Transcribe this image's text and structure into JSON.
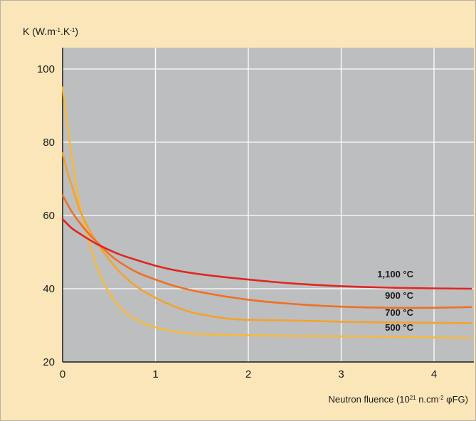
{
  "chart_data": {
    "type": "line",
    "title": "",
    "ylabel": "K (W.m-1.K-1)",
    "ylabel_parts": {
      "base": "K (W.m",
      "sup1": "-1",
      "mid": ".K",
      "sup2": "-1",
      "end": ")"
    },
    "xlabel": "Neutron fluence (10²¹ n.cm⁻² φFG)",
    "xlabel_parts": {
      "base": "Neutron fluence (10",
      "sup1": "21",
      "mid": " n.cm",
      "sup2": "-2",
      "end": " φFG)"
    },
    "xlim": [
      0,
      4.4
    ],
    "ylim": [
      20,
      105
    ],
    "x_ticks": [
      0,
      1,
      2,
      3,
      4
    ],
    "x_tick_labels": [
      "0",
      "1",
      "2",
      "3",
      "4"
    ],
    "y_ticks": [
      20,
      40,
      60,
      80,
      100
    ],
    "y_tick_labels": [
      "20",
      "40",
      "60",
      "80",
      "100"
    ],
    "grid": true,
    "plot_background": "#bdbec0",
    "figure_background": "#fae6b9",
    "grid_color": "#ffffff",
    "series": [
      {
        "name": "500 °C",
        "color": "#f5b93b",
        "x": [
          0,
          0.05,
          0.1,
          0.15,
          0.2,
          0.25,
          0.3,
          0.35,
          0.4,
          0.5,
          0.6,
          0.7,
          0.8,
          0.9,
          1.0,
          1.2,
          1.5,
          2.0,
          2.5,
          3.0,
          3.5,
          4.0,
          4.4
        ],
        "y": [
          95,
          85,
          76,
          67.5,
          61,
          56,
          51.5,
          47.5,
          44,
          39,
          35.5,
          33,
          31.5,
          30.3,
          29.5,
          28.3,
          27.6,
          27.3,
          27.1,
          27,
          26.9,
          26.7,
          26.5
        ]
      },
      {
        "name": "700 °C",
        "color": "#f4a22d",
        "x": [
          0,
          0.05,
          0.1,
          0.15,
          0.2,
          0.3,
          0.4,
          0.5,
          0.6,
          0.7,
          0.8,
          1.0,
          1.2,
          1.4,
          1.6,
          1.8,
          2.0,
          2.5,
          3.0,
          3.5,
          4.0,
          4.4
        ],
        "y": [
          77,
          72,
          68,
          64,
          60.5,
          55.5,
          51.5,
          48,
          45,
          42.5,
          40.5,
          37.5,
          35.2,
          33.5,
          32.5,
          31.8,
          31.5,
          31.3,
          31,
          30.8,
          30.7,
          30.6
        ]
      },
      {
        "name": "900 °C",
        "color": "#ee7024",
        "x": [
          0,
          0.1,
          0.2,
          0.3,
          0.4,
          0.5,
          0.6,
          0.8,
          1.0,
          1.2,
          1.5,
          2.0,
          2.5,
          3.0,
          3.5,
          4.0,
          4.4
        ],
        "y": [
          65.5,
          61,
          57.5,
          54.5,
          52,
          49.5,
          47.5,
          44.5,
          42.5,
          40.8,
          39,
          37,
          35.8,
          35.1,
          34.8,
          34.8,
          35
        ]
      },
      {
        "name": "1,100 °C",
        "color": "#e0261f",
        "x": [
          0,
          0.1,
          0.2,
          0.3,
          0.4,
          0.6,
          0.8,
          1.0,
          1.2,
          1.5,
          2.0,
          2.5,
          3.0,
          3.5,
          4.0,
          4.4
        ],
        "y": [
          59,
          56.5,
          54.8,
          53.2,
          51.8,
          49.5,
          47.8,
          46.3,
          45.1,
          43.9,
          42.5,
          41.4,
          40.7,
          40.3,
          40.1,
          40
        ]
      }
    ]
  }
}
